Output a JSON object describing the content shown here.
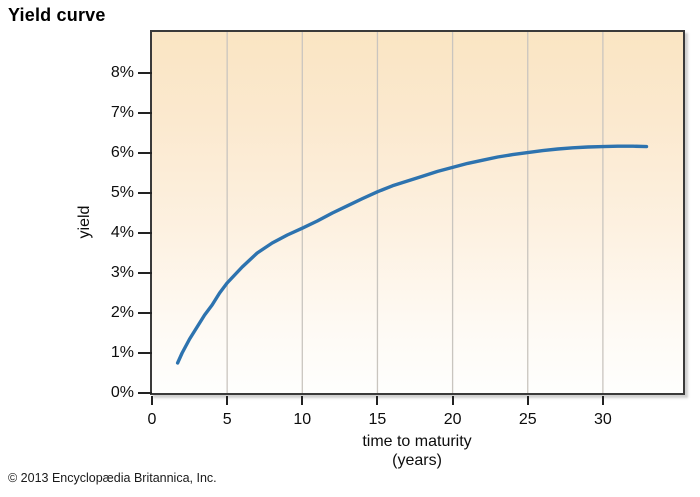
{
  "page": {
    "title": "Yield curve",
    "copyright": "© 2013 Encyclopædia Britannica, Inc."
  },
  "chart_data": {
    "type": "line",
    "title": "Yield curve",
    "xlabel": "time to maturity",
    "xlabel_units": "(years)",
    "ylabel": "yield",
    "xlim": [
      0,
      35.33
    ],
    "ylim": [
      0,
      9.025
    ],
    "xticks": [
      0,
      5,
      10,
      15,
      20,
      25,
      30
    ],
    "yticks": [
      0,
      1,
      2,
      3,
      4,
      5,
      6,
      7,
      8
    ],
    "ytick_suffix": "%",
    "grid": "vertical-only",
    "legend": "none",
    "line_color": "#2d73af",
    "gridline_color": "#c9c5bf",
    "plot_bg_top": "#fae5c3",
    "plot_bg_bottom": "#fefefd",
    "series": [
      {
        "name": "yield curve",
        "points": [
          [
            1.7,
            0.75
          ],
          [
            2.0,
            1.0
          ],
          [
            2.5,
            1.35
          ],
          [
            3.0,
            1.65
          ],
          [
            3.5,
            1.95
          ],
          [
            4.0,
            2.2
          ],
          [
            4.5,
            2.5
          ],
          [
            5.0,
            2.75
          ],
          [
            6.0,
            3.15
          ],
          [
            7.0,
            3.5
          ],
          [
            8.0,
            3.75
          ],
          [
            9.0,
            3.95
          ],
          [
            10.0,
            4.12
          ],
          [
            11.0,
            4.3
          ],
          [
            12.0,
            4.5
          ],
          [
            13.0,
            4.68
          ],
          [
            14.0,
            4.86
          ],
          [
            15.0,
            5.03
          ],
          [
            16.0,
            5.18
          ],
          [
            17.0,
            5.3
          ],
          [
            18.0,
            5.42
          ],
          [
            19.0,
            5.54
          ],
          [
            20.0,
            5.64
          ],
          [
            21.0,
            5.74
          ],
          [
            22.0,
            5.82
          ],
          [
            23.0,
            5.9
          ],
          [
            24.0,
            5.96
          ],
          [
            25.0,
            6.01
          ],
          [
            26.0,
            6.06
          ],
          [
            27.0,
            6.1
          ],
          [
            28.0,
            6.13
          ],
          [
            29.0,
            6.15
          ],
          [
            30.0,
            6.16
          ],
          [
            31.0,
            6.17
          ],
          [
            32.0,
            6.17
          ],
          [
            32.9,
            6.16
          ]
        ]
      }
    ]
  }
}
